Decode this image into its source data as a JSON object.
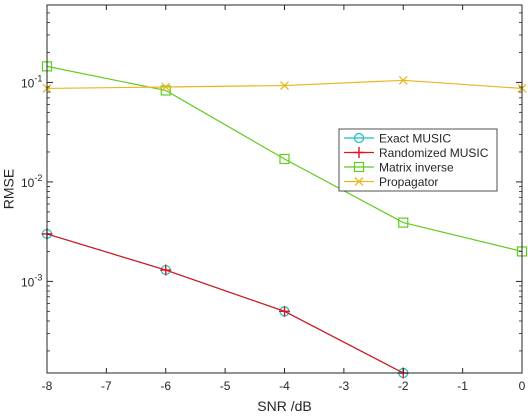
{
  "chart_data": {
    "type": "line",
    "xlabel": "SNR /dB",
    "ylabel": "RMSE",
    "x_scale": "linear",
    "y_scale": "log",
    "xlim": [
      -8,
      0
    ],
    "ylim": [
      0.00012,
      0.6
    ],
    "x_ticks": [
      -8,
      -7,
      -6,
      -5,
      -4,
      -3,
      -2,
      -1,
      0
    ],
    "y_ticks": [
      {
        "value": 0.1,
        "base": "10",
        "exp": "-1"
      },
      {
        "value": 0.01,
        "base": "10",
        "exp": "-2"
      },
      {
        "value": 0.001,
        "base": "10",
        "exp": "-3"
      }
    ],
    "grid": false,
    "box": true,
    "legend_position": "inside-right",
    "series": [
      {
        "name": "Exact MUSIC",
        "color": "#17bfbf",
        "marker": "circle",
        "line": "solid",
        "x": [
          -8,
          -6,
          -4,
          -2
        ],
        "y": [
          0.003,
          0.0013,
          0.0005,
          0.00012
        ]
      },
      {
        "name": "Randomized MUSIC",
        "color": "#e0141e",
        "marker": "plus",
        "line": "solid",
        "x": [
          -8,
          -6,
          -4,
          -2
        ],
        "y": [
          0.003,
          0.0013,
          0.0005,
          0.00012
        ]
      },
      {
        "name": "Matrix inverse",
        "color": "#5fcc1f",
        "marker": "square",
        "line": "solid",
        "x": [
          -8,
          -6,
          -4,
          -2,
          0
        ],
        "y": [
          0.145,
          0.083,
          0.017,
          0.0039,
          0.002
        ]
      },
      {
        "name": "Propagator",
        "color": "#e8b71e",
        "marker": "x",
        "line": "solid",
        "x": [
          -8,
          -6,
          -4,
          -2,
          0
        ],
        "y": [
          0.087,
          0.09,
          0.093,
          0.105,
          0.087
        ]
      }
    ]
  }
}
